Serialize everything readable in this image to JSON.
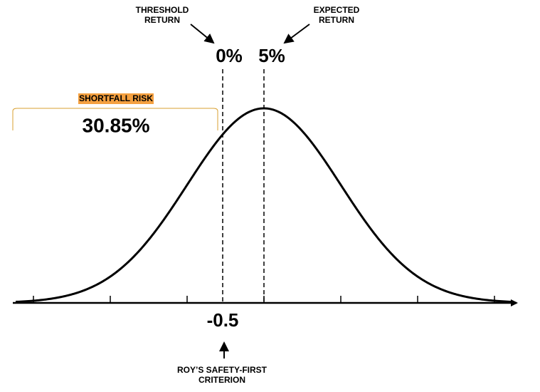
{
  "threshold_label": [
    "THRESHOLD",
    "RETURN"
  ],
  "expected_label": [
    "EXPECTED",
    "RETURN"
  ],
  "threshold_value": "0%",
  "expected_value": "5%",
  "shortfall_label": "SHORTFALL RISK",
  "shortfall_value": "30.85%",
  "criterion_value": "-0.5",
  "criterion_label": [
    "ROY’S SAFETY-FIRST",
    "CRITERION"
  ]
}
